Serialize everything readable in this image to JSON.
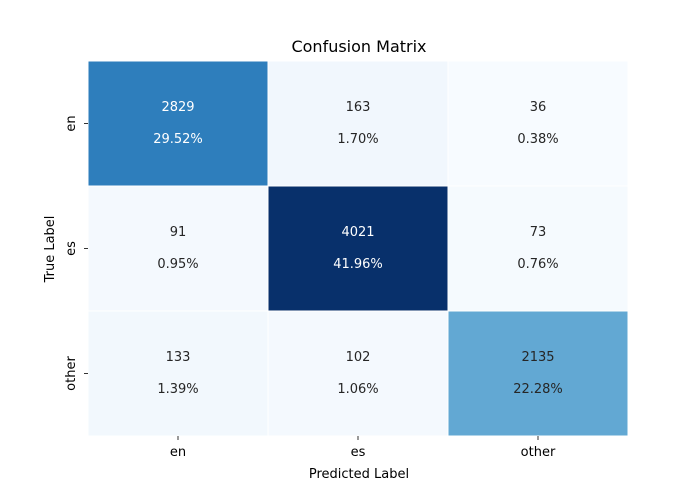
{
  "chart_data": {
    "type": "heatmap",
    "title": "Confusion Matrix",
    "xlabel": "Predicted Label",
    "ylabel": "True Label",
    "x_categories": [
      "en",
      "es",
      "other"
    ],
    "y_categories": [
      "en",
      "es",
      "other"
    ],
    "values": [
      [
        2829,
        163,
        36
      ],
      [
        91,
        4021,
        73
      ],
      [
        133,
        102,
        2135
      ]
    ],
    "percentages": [
      [
        "29.52%",
        "1.70%",
        "0.38%"
      ],
      [
        "0.95%",
        "41.96%",
        "0.76%"
      ],
      [
        "1.39%",
        "1.06%",
        "22.28%"
      ]
    ],
    "colormap": "Blues",
    "colorbar": false
  }
}
